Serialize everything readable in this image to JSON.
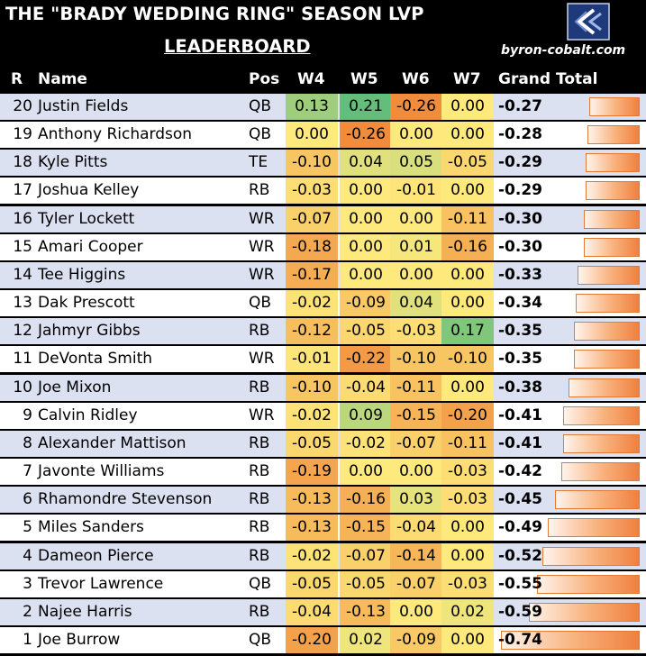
{
  "header": {
    "title": "THE \"BRADY WEDDING RING\" SEASON LVP",
    "subtitle": "LEADERBOARD",
    "site": "byron-cobalt.com",
    "logo_icon": "bc-monogram-logo"
  },
  "columns": {
    "rank": "R",
    "name": "Name",
    "pos": "Pos",
    "w4": "W4",
    "w5": "W5",
    "w6": "W6",
    "w7": "W7",
    "total": "Grand Total"
  },
  "colors": {
    "heat_min": "#f08c3c",
    "heat_mid": "#fde97c",
    "heat_max": "#63be7b",
    "row_band": "#dce1f2",
    "bar": "#ef8040"
  },
  "rows": [
    {
      "rank": "20",
      "name": "Justin Fields",
      "pos": "QB",
      "w4": "0.13",
      "w5": "0.21",
      "w6": "-0.26",
      "w7": "0.00",
      "total": "-0.27"
    },
    {
      "rank": "19",
      "name": "Anthony Richardson",
      "pos": "QB",
      "w4": "0.00",
      "w5": "-0.26",
      "w6": "0.00",
      "w7": "0.00",
      "total": "-0.28"
    },
    {
      "rank": "18",
      "name": "Kyle Pitts",
      "pos": "TE",
      "w4": "-0.10",
      "w5": "0.04",
      "w6": "0.05",
      "w7": "-0.05",
      "total": "-0.29"
    },
    {
      "rank": "17",
      "name": "Joshua Kelley",
      "pos": "RB",
      "w4": "-0.03",
      "w5": "0.00",
      "w6": "-0.01",
      "w7": "0.00",
      "total": "-0.29"
    },
    {
      "rank": "16",
      "name": "Tyler Lockett",
      "pos": "WR",
      "w4": "-0.07",
      "w5": "0.00",
      "w6": "0.00",
      "w7": "-0.11",
      "total": "-0.30"
    },
    {
      "rank": "15",
      "name": "Amari Cooper",
      "pos": "WR",
      "w4": "-0.18",
      "w5": "0.00",
      "w6": "0.01",
      "w7": "-0.16",
      "total": "-0.30"
    },
    {
      "rank": "14",
      "name": "Tee Higgins",
      "pos": "WR",
      "w4": "-0.17",
      "w5": "0.00",
      "w6": "0.00",
      "w7": "0.00",
      "total": "-0.33"
    },
    {
      "rank": "13",
      "name": "Dak Prescott",
      "pos": "QB",
      "w4": "-0.02",
      "w5": "-0.09",
      "w6": "0.04",
      "w7": "0.00",
      "total": "-0.34"
    },
    {
      "rank": "12",
      "name": "Jahmyr Gibbs",
      "pos": "RB",
      "w4": "-0.12",
      "w5": "-0.05",
      "w6": "-0.03",
      "w7": "0.17",
      "total": "-0.35"
    },
    {
      "rank": "11",
      "name": "DeVonta Smith",
      "pos": "WR",
      "w4": "-0.01",
      "w5": "-0.22",
      "w6": "-0.10",
      "w7": "-0.10",
      "total": "-0.35"
    },
    {
      "rank": "10",
      "name": "Joe Mixon",
      "pos": "RB",
      "w4": "-0.10",
      "w5": "-0.04",
      "w6": "-0.11",
      "w7": "0.00",
      "total": "-0.38"
    },
    {
      "rank": "9",
      "name": "Calvin Ridley",
      "pos": "WR",
      "w4": "-0.02",
      "w5": "0.09",
      "w6": "-0.15",
      "w7": "-0.20",
      "total": "-0.41"
    },
    {
      "rank": "8",
      "name": "Alexander Mattison",
      "pos": "RB",
      "w4": "-0.05",
      "w5": "-0.02",
      "w6": "-0.07",
      "w7": "-0.11",
      "total": "-0.41"
    },
    {
      "rank": "7",
      "name": "Javonte Williams",
      "pos": "RB",
      "w4": "-0.19",
      "w5": "0.00",
      "w6": "0.00",
      "w7": "-0.03",
      "total": "-0.42"
    },
    {
      "rank": "6",
      "name": "Rhamondre Stevenson",
      "pos": "RB",
      "w4": "-0.13",
      "w5": "-0.16",
      "w6": "0.03",
      "w7": "-0.03",
      "total": "-0.45"
    },
    {
      "rank": "5",
      "name": "Miles Sanders",
      "pos": "RB",
      "w4": "-0.13",
      "w5": "-0.15",
      "w6": "-0.04",
      "w7": "0.00",
      "total": "-0.49"
    },
    {
      "rank": "4",
      "name": "Dameon Pierce",
      "pos": "RB",
      "w4": "-0.02",
      "w5": "-0.07",
      "w6": "-0.14",
      "w7": "0.00",
      "total": "-0.52"
    },
    {
      "rank": "3",
      "name": "Trevor Lawrence",
      "pos": "QB",
      "w4": "-0.05",
      "w5": "-0.05",
      "w6": "-0.07",
      "w7": "-0.03",
      "total": "-0.55"
    },
    {
      "rank": "2",
      "name": "Najee Harris",
      "pos": "RB",
      "w4": "-0.04",
      "w5": "-0.13",
      "w6": "0.00",
      "w7": "0.02",
      "total": "-0.59"
    },
    {
      "rank": "1",
      "name": "Joe Burrow",
      "pos": "QB",
      "w4": "-0.20",
      "w5": "0.02",
      "w6": "-0.09",
      "w7": "0.00",
      "total": "-0.74"
    }
  ]
}
